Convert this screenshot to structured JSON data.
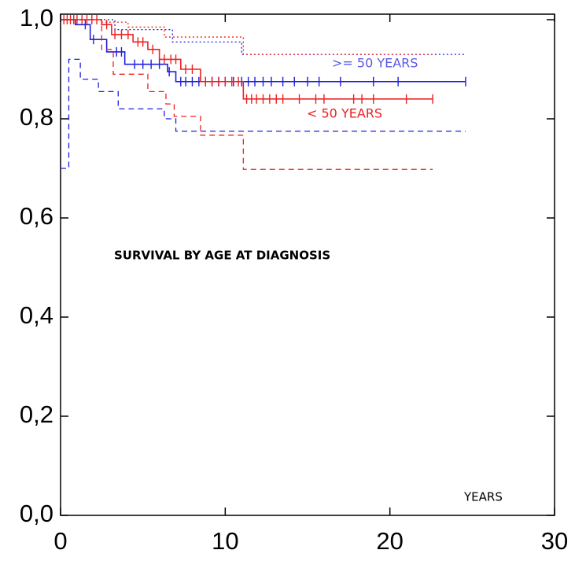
{
  "chart_data": {
    "type": "step",
    "title": "SURVIVAL BY AGE AT DIAGNOSIS",
    "x_label": "YEARS",
    "xlim": [
      0,
      30
    ],
    "xticks": [
      0,
      10,
      20,
      30
    ],
    "ylim": [
      0,
      1
    ],
    "yticks": [
      {
        "value": 0,
        "label": "0,0"
      },
      {
        "value": 0.2,
        "label": "0,2"
      },
      {
        "value": 0.4,
        "label": "0,4"
      },
      {
        "value": 0.6,
        "label": "0,6"
      },
      {
        "value": 0.8,
        "label": "0,8"
      },
      {
        "value": 1,
        "label": "1,0"
      }
    ],
    "series": [
      {
        "name": ">= 50 YEARS",
        "color": "#1f1fe0",
        "style": "solid",
        "x": [
          0,
          0.9,
          1.8,
          2.8,
          3.9,
          6.5,
          7.0,
          24.6
        ],
        "values": [
          1,
          0.99,
          0.96,
          0.935,
          0.91,
          0.895,
          0.875,
          0.875
        ],
        "censored": [
          1.5,
          2.0,
          3.4,
          3.7,
          4.5,
          5.0,
          5.5,
          6.0,
          6.6,
          7.3,
          7.6,
          8.0,
          8.4,
          8.8,
          9.2,
          9.6,
          10.0,
          10.5,
          11.0,
          11.4,
          11.8,
          12.3,
          12.8,
          13.5,
          14.2,
          15.0,
          15.7,
          17.0,
          19.0,
          20.5,
          24.6
        ]
      },
      {
        "name": "< 50 YEARS",
        "color": "#ee2020",
        "style": "solid",
        "x": [
          0,
          2.5,
          3.1,
          4.4,
          5.3,
          6.0,
          7.3,
          8.5,
          11.1,
          22.6
        ],
        "values": [
          1,
          0.99,
          0.97,
          0.955,
          0.94,
          0.92,
          0.9,
          0.875,
          0.84,
          0.84
        ],
        "censored": [
          0.2,
          0.4,
          0.6,
          0.8,
          1.0,
          1.3,
          1.6,
          1.9,
          2.2,
          2.8,
          3.3,
          3.7,
          4.1,
          4.7,
          5.0,
          5.6,
          6.3,
          6.7,
          7.0,
          7.6,
          8.0,
          8.8,
          9.2,
          9.6,
          10.0,
          10.4,
          10.8,
          11.3,
          11.6,
          11.9,
          12.3,
          12.7,
          13.1,
          13.5,
          14.5,
          15.5,
          16.0,
          17.8,
          18.3,
          19.0,
          21.0,
          22.6
        ]
      },
      {
        "color": "#1f1fe0",
        "style": "dashed",
        "x": [
          0,
          0.5,
          1.2,
          2.3,
          3.5,
          6.3,
          7.0,
          24.6
        ],
        "values": [
          0.7,
          0.92,
          0.88,
          0.855,
          0.82,
          0.8,
          0.775,
          0.775
        ]
      },
      {
        "color": "#1f1fe0",
        "style": "dotted",
        "x": [
          0,
          3.3,
          6.8,
          11.0,
          24.6
        ],
        "values": [
          1,
          0.98,
          0.955,
          0.93,
          0.93
        ]
      },
      {
        "color": "#ee2020",
        "style": "dashed",
        "x": [
          0,
          2.5,
          3.2,
          5.3,
          6.4,
          6.9,
          8.5,
          11.1,
          22.6
        ],
        "values": [
          1,
          0.94,
          0.89,
          0.855,
          0.83,
          0.805,
          0.767,
          0.698,
          0.698
        ]
      },
      {
        "color": "#ee2020",
        "style": "dotted",
        "x": [
          0,
          2.5,
          4.1,
          6.3,
          11.1,
          22.6
        ],
        "values": [
          1,
          0.995,
          0.985,
          0.965,
          0.93,
          0.93
        ]
      }
    ]
  }
}
